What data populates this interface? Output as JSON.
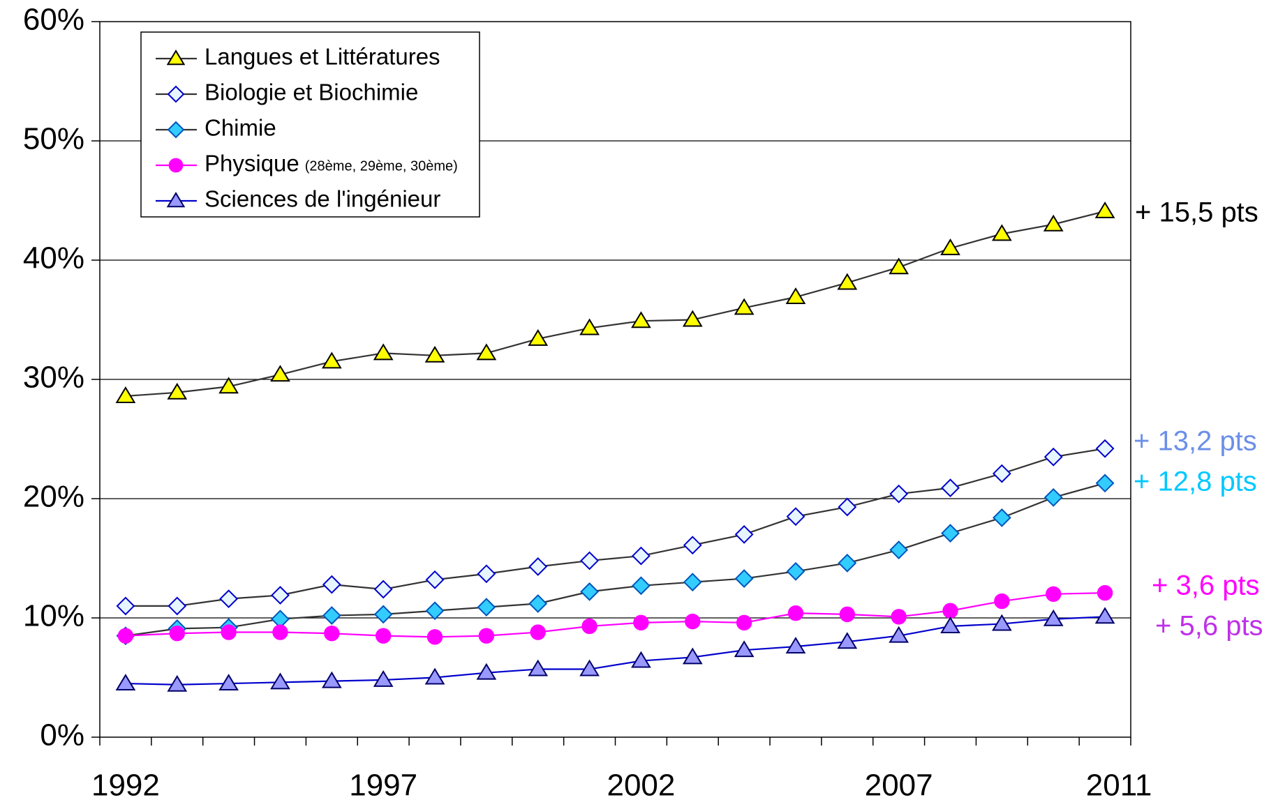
{
  "chart_data": {
    "type": "line",
    "categories": [
      "1992",
      null,
      null,
      null,
      null,
      "1997",
      null,
      null,
      null,
      null,
      "2002",
      null,
      null,
      null,
      null,
      "2007",
      null,
      null,
      null,
      "2011"
    ],
    "ylim": [
      0,
      60
    ],
    "yticks": [
      {
        "value": 0,
        "label": "0%"
      },
      {
        "value": 10,
        "label": "10%"
      },
      {
        "value": 20,
        "label": "20%"
      },
      {
        "value": 30,
        "label": "30%"
      },
      {
        "value": 40,
        "label": "40%"
      },
      {
        "value": 50,
        "label": "50%"
      },
      {
        "value": 60,
        "label": "60%"
      }
    ],
    "grid": true,
    "legend": "upper left",
    "series": [
      {
        "name": "Langues et Littératures",
        "color": "#333333",
        "marker": "triangle",
        "marker_fill": "#ffff00",
        "marker_stroke": "#000000",
        "values": [
          28.6,
          28.9,
          29.4,
          30.4,
          31.5,
          32.2,
          32.0,
          32.2,
          33.4,
          34.3,
          34.9,
          35.0,
          36.0,
          36.9,
          38.1,
          39.4,
          41.0,
          42.2,
          43.0,
          44.1
        ]
      },
      {
        "name": "Biologie et Biochimie",
        "color": "#333333",
        "marker": "diamond",
        "marker_fill": "#e6f5ff",
        "marker_stroke": "#0000cc",
        "values": [
          11.0,
          11.0,
          11.6,
          11.9,
          12.8,
          12.4,
          13.2,
          13.7,
          14.3,
          14.8,
          15.2,
          16.1,
          17.0,
          18.5,
          19.3,
          20.4,
          20.9,
          22.1,
          23.5,
          24.2
        ]
      },
      {
        "name": "Chimie",
        "color": "#333333",
        "marker": "diamond",
        "marker_fill": "#33ccff",
        "marker_stroke": "#0055bb",
        "values": [
          8.5,
          9.1,
          9.2,
          9.9,
          10.2,
          10.3,
          10.6,
          10.9,
          11.2,
          12.2,
          12.7,
          13.0,
          13.3,
          13.9,
          14.6,
          15.7,
          17.1,
          18.4,
          20.1,
          21.3
        ]
      },
      {
        "name": "Physique",
        "name_note": "(28ème, 29ème, 30ème)",
        "color": "#ff00ff",
        "marker": "circle",
        "marker_fill": "#ff00ff",
        "marker_stroke": "#ff00ff",
        "values": [
          8.5,
          8.7,
          8.8,
          8.8,
          8.7,
          8.5,
          8.4,
          8.5,
          8.8,
          9.3,
          9.6,
          9.7,
          9.6,
          10.4,
          10.3,
          10.1,
          10.6,
          11.4,
          12.0,
          12.1
        ]
      },
      {
        "name": "Sciences de l'ingénieur",
        "color": "#0000cc",
        "marker": "triangle",
        "marker_fill": "#9999ff",
        "marker_stroke": "#000066",
        "values": [
          4.5,
          4.4,
          4.5,
          4.6,
          4.7,
          4.8,
          5.0,
          5.4,
          5.7,
          5.7,
          6.4,
          6.7,
          7.3,
          7.6,
          8.0,
          8.5,
          9.3,
          9.5,
          9.9,
          10.1
        ]
      }
    ],
    "annotations": [
      {
        "text": "+ 15,5 pts",
        "color": "#000000"
      },
      {
        "text": "+ 13,2 pts",
        "color": "#6b8fe8"
      },
      {
        "text": "+ 12,8 pts",
        "color": "#00c8ff"
      },
      {
        "text": "+ 3,6 pts",
        "color": "#ff00ff"
      },
      {
        "text": "+ 5,6 pts",
        "color": "#c030e8"
      }
    ]
  }
}
